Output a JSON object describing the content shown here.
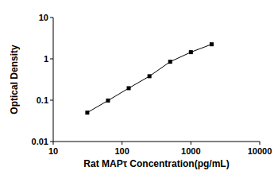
{
  "chart_data": {
    "type": "line",
    "x_label": "Rat MAPτ Concentration(pg/mL)",
    "y_label": "Optical Density",
    "x": [
      31.25,
      62.5,
      125,
      250,
      500,
      1000,
      2000
    ],
    "series": [
      {
        "name": "Rat MAPτ",
        "color": "#000000",
        "values": [
          0.05,
          0.098,
          0.195,
          0.38,
          0.85,
          1.45,
          2.25
        ],
        "marker": "square",
        "line_style": "solid"
      }
    ],
    "xlim": [
      10,
      10000
    ],
    "xticks": [
      10,
      100,
      1000,
      10000
    ],
    "ylim": [
      0.01,
      10
    ],
    "yticks": [
      0.01,
      0.1,
      1,
      10
    ],
    "log": true,
    "grid": false
  }
}
